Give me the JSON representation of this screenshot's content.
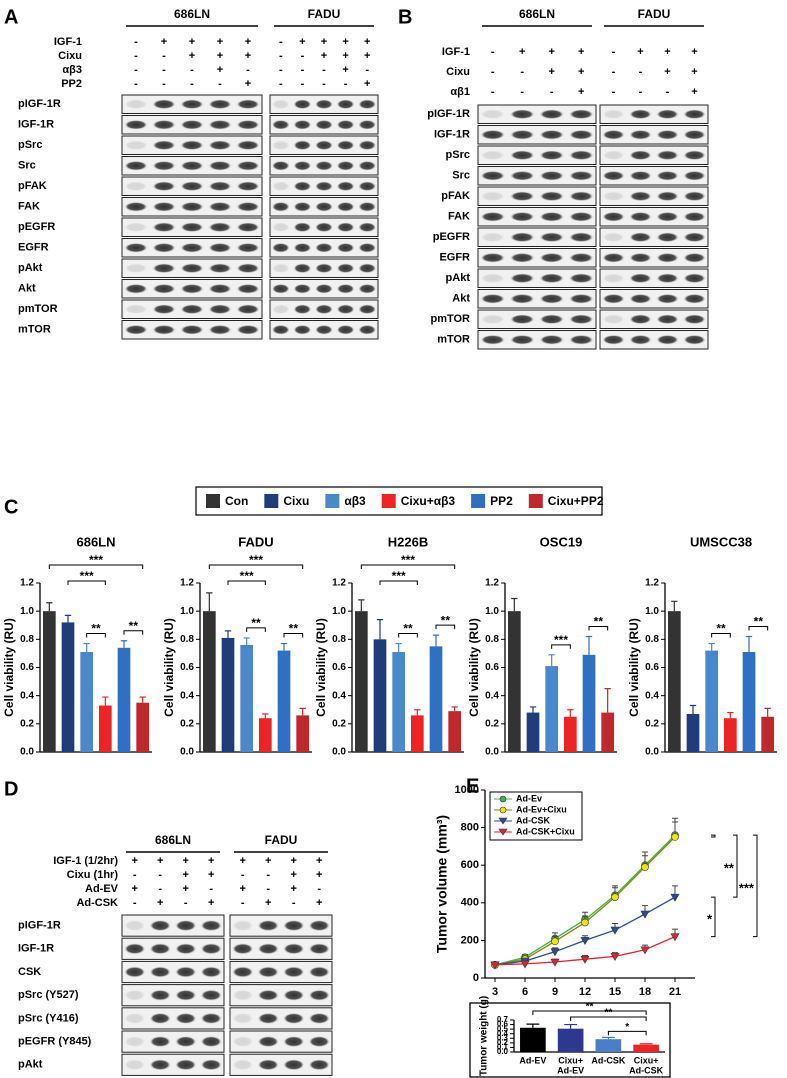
{
  "figure_labels": [
    "A",
    "B",
    "C",
    "D",
    "E"
  ],
  "blots": [
    {
      "groups": [
        "686LN",
        "FADU"
      ],
      "conditions": [
        {
          "name": "IGF-1",
          "signs": [
            [
              "-",
              "+",
              "+",
              "+",
              "+"
            ],
            [
              "-",
              "+",
              "+",
              "+",
              "+"
            ]
          ]
        },
        {
          "name": "Cixu",
          "signs": [
            [
              "-",
              "-",
              "+",
              "+",
              "+"
            ],
            [
              "-",
              "-",
              "+",
              "+",
              "+"
            ]
          ]
        },
        {
          "name": "αβ3",
          "signs": [
            [
              "-",
              "-",
              "-",
              "+",
              "-"
            ],
            [
              "-",
              "-",
              "-",
              "+",
              "-"
            ]
          ]
        },
        {
          "name": "PP2",
          "signs": [
            [
              "-",
              "-",
              "-",
              "-",
              "+"
            ],
            [
              "-",
              "-",
              "-",
              "-",
              "+"
            ]
          ]
        }
      ],
      "rows": [
        "pIGF-1R",
        "IGF-1R",
        "pSrc",
        "Src",
        "pFAK",
        "FAK",
        "pEGFR",
        "EGFR",
        "pAkt",
        "Akt",
        "pmTOR",
        "mTOR"
      ]
    },
    {
      "groups": [
        "686LN",
        "FADU"
      ],
      "conditions": [
        {
          "name": "IGF-1",
          "signs": [
            [
              "-",
              "+",
              "+",
              "+"
            ],
            [
              "-",
              "+",
              "+",
              "+"
            ]
          ]
        },
        {
          "name": "Cixu",
          "signs": [
            [
              "-",
              "-",
              "+",
              "+"
            ],
            [
              "-",
              "-",
              "+",
              "+"
            ]
          ]
        },
        {
          "name": "αβ1",
          "signs": [
            [
              "-",
              "-",
              "-",
              "+"
            ],
            [
              "-",
              "-",
              "-",
              "+"
            ]
          ]
        }
      ],
      "rows": [
        "pIGF-1R",
        "IGF-1R",
        "pSrc",
        "Src",
        "pFAK",
        "FAK",
        "pEGFR",
        "EGFR",
        "pAkt",
        "Akt",
        "pmTOR",
        "mTOR"
      ]
    },
    {
      "groups": [
        "686LN",
        "FADU"
      ],
      "conditions": [
        {
          "name": "IGF-1 (1/2hr)",
          "signs": [
            [
              "+",
              "+",
              "+",
              "+"
            ],
            [
              "+",
              "+",
              "+",
              "+"
            ]
          ]
        },
        {
          "name": "Cixu (1hr)",
          "signs": [
            [
              "-",
              "-",
              "+",
              "+"
            ],
            [
              "-",
              "-",
              "+",
              "+"
            ]
          ]
        },
        {
          "name": "Ad-EV",
          "signs": [
            [
              "+",
              "-",
              "+",
              "-"
            ],
            [
              "+",
              "-",
              "+",
              "-"
            ]
          ]
        },
        {
          "name": "Ad-CSK",
          "signs": [
            [
              "-",
              "+",
              "-",
              "+"
            ],
            [
              "-",
              "+",
              "-",
              "+"
            ]
          ]
        }
      ],
      "rows": [
        "pIGF-1R",
        "IGF-1R",
        "CSK",
        "pSrc (Y527)",
        "pSrc (Y416)",
        "pEGFR (Y845)",
        "pAkt"
      ]
    }
  ],
  "legend": [
    {
      "name": "Con",
      "color": "#333333"
    },
    {
      "name": "Cixu",
      "color": "#1f3d7a"
    },
    {
      "name": "αβ3",
      "color": "#4a88cc"
    },
    {
      "name": "Cixu+αβ3",
      "color": "#ee2424"
    },
    {
      "name": "PP2",
      "color": "#2f6fc4"
    },
    {
      "name": "Cixu+PP2",
      "color": "#c0282e"
    }
  ],
  "chart_data": [
    {
      "type": "bar",
      "title": "686LN",
      "ylabel": "Cell viability (RU)",
      "categories": [
        null,
        null,
        null,
        null,
        null,
        null
      ],
      "values": [
        1.0,
        0.92,
        0.71,
        0.33,
        0.74,
        0.35
      ],
      "errors": [
        0.06,
        0.05,
        0.06,
        0.06,
        0.05,
        0.04
      ],
      "ylim": [
        0,
        1.2
      ],
      "yticks": [
        {
          "value": 0,
          "label": "0.0"
        },
        0.2,
        0.4,
        0.6,
        0.8,
        {
          "value": 1,
          "label": "1.0"
        },
        1.2
      ],
      "annotations": [
        {
          "text": "***",
          "from": 0,
          "to": 5
        },
        {
          "text": "***",
          "from": 1,
          "to": 3
        },
        {
          "text": "**",
          "from": 2,
          "to": 3
        },
        {
          "text": "**",
          "from": 4,
          "to": 5
        }
      ]
    },
    {
      "type": "bar",
      "title": "FADU",
      "ylabel": "Cell viability (RU)",
      "categories": [
        null,
        null,
        null,
        null,
        null,
        null
      ],
      "values": [
        1.0,
        0.81,
        0.76,
        0.24,
        0.72,
        0.26
      ],
      "errors": [
        0.13,
        0.05,
        0.05,
        0.03,
        0.05,
        0.05
      ],
      "ylim": [
        0,
        1.2
      ],
      "yticks": [
        {
          "value": 0,
          "label": "0.0"
        },
        0.2,
        0.4,
        0.6,
        0.8,
        {
          "value": 1,
          "label": "1.0"
        },
        1.2
      ],
      "annotations": [
        {
          "text": "***",
          "from": 0,
          "to": 5
        },
        {
          "text": "***",
          "from": 1,
          "to": 3
        },
        {
          "text": "**",
          "from": 2,
          "to": 3
        },
        {
          "text": "**",
          "from": 4,
          "to": 5
        }
      ]
    },
    {
      "type": "bar",
      "title": "H226B",
      "ylabel": "Cell viability (RU)",
      "categories": [
        null,
        null,
        null,
        null,
        null,
        null
      ],
      "values": [
        1.0,
        0.8,
        0.71,
        0.26,
        0.75,
        0.29
      ],
      "errors": [
        0.08,
        0.14,
        0.06,
        0.04,
        0.08,
        0.03
      ],
      "ylim": [
        0,
        1.2
      ],
      "yticks": [
        {
          "value": 0,
          "label": "0.0"
        },
        0.2,
        0.4,
        0.6,
        0.8,
        {
          "value": 1,
          "label": "1.0"
        },
        1.2
      ],
      "annotations": [
        {
          "text": "***",
          "from": 0,
          "to": 5
        },
        {
          "text": "***",
          "from": 1,
          "to": 3
        },
        {
          "text": "**",
          "from": 2,
          "to": 3
        },
        {
          "text": "**",
          "from": 4,
          "to": 5
        }
      ]
    },
    {
      "type": "bar",
      "title": "OSC19",
      "ylabel": "Cell viability (RU)",
      "categories": [
        null,
        null,
        null,
        null,
        null,
        null
      ],
      "values": [
        1.0,
        0.28,
        0.61,
        0.25,
        0.69,
        0.28
      ],
      "errors": [
        0.09,
        0.04,
        0.08,
        0.05,
        0.13,
        0.17
      ],
      "ylim": [
        0,
        1.2
      ],
      "yticks": [
        {
          "value": 0,
          "label": "0.0"
        },
        0.2,
        0.4,
        0.6,
        0.8,
        {
          "value": 1,
          "label": "1.0"
        },
        1.2
      ],
      "annotations": [
        {
          "text": "***",
          "from": 2,
          "to": 3
        },
        {
          "text": "**",
          "from": 4,
          "to": 5
        }
      ]
    },
    {
      "type": "bar",
      "title": "UMSCC38",
      "ylabel": "Cell viability (RU)",
      "categories": [
        null,
        null,
        null,
        null,
        null,
        null
      ],
      "values": [
        1.0,
        0.27,
        0.72,
        0.24,
        0.71,
        0.25
      ],
      "errors": [
        0.07,
        0.06,
        0.05,
        0.04,
        0.11,
        0.06
      ],
      "ylim": [
        0,
        1.2
      ],
      "yticks": [
        {
          "value": 0,
          "label": "0.0"
        },
        0.2,
        0.4,
        0.6,
        0.8,
        {
          "value": 1,
          "label": "1.0"
        },
        1.2
      ],
      "annotations": [
        {
          "text": "**",
          "from": 2,
          "to": 3
        },
        {
          "text": "**",
          "from": 4,
          "to": 5
        }
      ]
    },
    {
      "type": "line",
      "ylabel": "Tumor volume (mm³)",
      "x": [
        3,
        6,
        9,
        12,
        15,
        18,
        21
      ],
      "xlim": [
        2,
        23
      ],
      "xticks": [
        3,
        6,
        9,
        12,
        15,
        18,
        21
      ],
      "ylim": [
        0,
        1000
      ],
      "yticks": [
        0,
        200,
        400,
        600,
        800,
        1000
      ],
      "series": [
        {
          "name": "Ad-Ev",
          "color": "#3cb44b",
          "values": [
            70,
            110,
            210,
            310,
            440,
            600,
            760
          ],
          "errors": [
            5,
            15,
            30,
            40,
            50,
            70,
            90
          ]
        },
        {
          "name": "Ad-Ev+Cixu",
          "color": "#f2e600",
          "values": [
            70,
            100,
            195,
            295,
            430,
            590,
            750
          ],
          "errors": [
            5,
            15,
            25,
            35,
            50,
            60,
            80
          ]
        },
        {
          "name": "Ad-CSK",
          "color": "#2b4c9b",
          "values": [
            70,
            90,
            140,
            200,
            255,
            340,
            430
          ],
          "errors": [
            5,
            10,
            20,
            25,
            35,
            45,
            60
          ]
        },
        {
          "name": "Ad-CSK+Cixu",
          "color": "#e0262b",
          "values": [
            70,
            75,
            85,
            100,
            115,
            150,
            220
          ],
          "errors": [
            5,
            8,
            15,
            20,
            20,
            25,
            40
          ]
        }
      ],
      "annotations": [
        {
          "text": "**",
          "from": 0,
          "to": 2
        },
        {
          "text": "***",
          "from": 0,
          "to": 3
        },
        {
          "text": "*",
          "from": 2,
          "to": 3
        }
      ]
    },
    {
      "type": "bar",
      "ylabel": "Tumor weight (g)",
      "categories": [
        [
          "Ad-EV"
        ],
        [
          "Cixu+",
          "Ad-EV"
        ],
        [
          "Ad-CSK"
        ],
        [
          "Cixu+",
          "Ad-CSK"
        ]
      ],
      "values": [
        0.53,
        0.51,
        0.28,
        0.16
      ],
      "errors": [
        0.08,
        0.09,
        0.04,
        0.02
      ],
      "colors": [
        "#000000",
        "#2b3a8f",
        "#4a7fc8",
        "#ee2424"
      ],
      "ylim": [
        0,
        0.7
      ],
      "yticks": [
        {
          "value": 0,
          "label": "0.0"
        },
        0.1,
        0.2,
        0.3,
        0.4,
        0.5,
        0.6,
        0.7
      ],
      "annotations": [
        {
          "text": "**",
          "from": 0,
          "to": 3
        },
        {
          "text": "**",
          "from": 1,
          "to": 3
        },
        {
          "text": "*",
          "from": 2,
          "to": 3
        }
      ]
    }
  ]
}
